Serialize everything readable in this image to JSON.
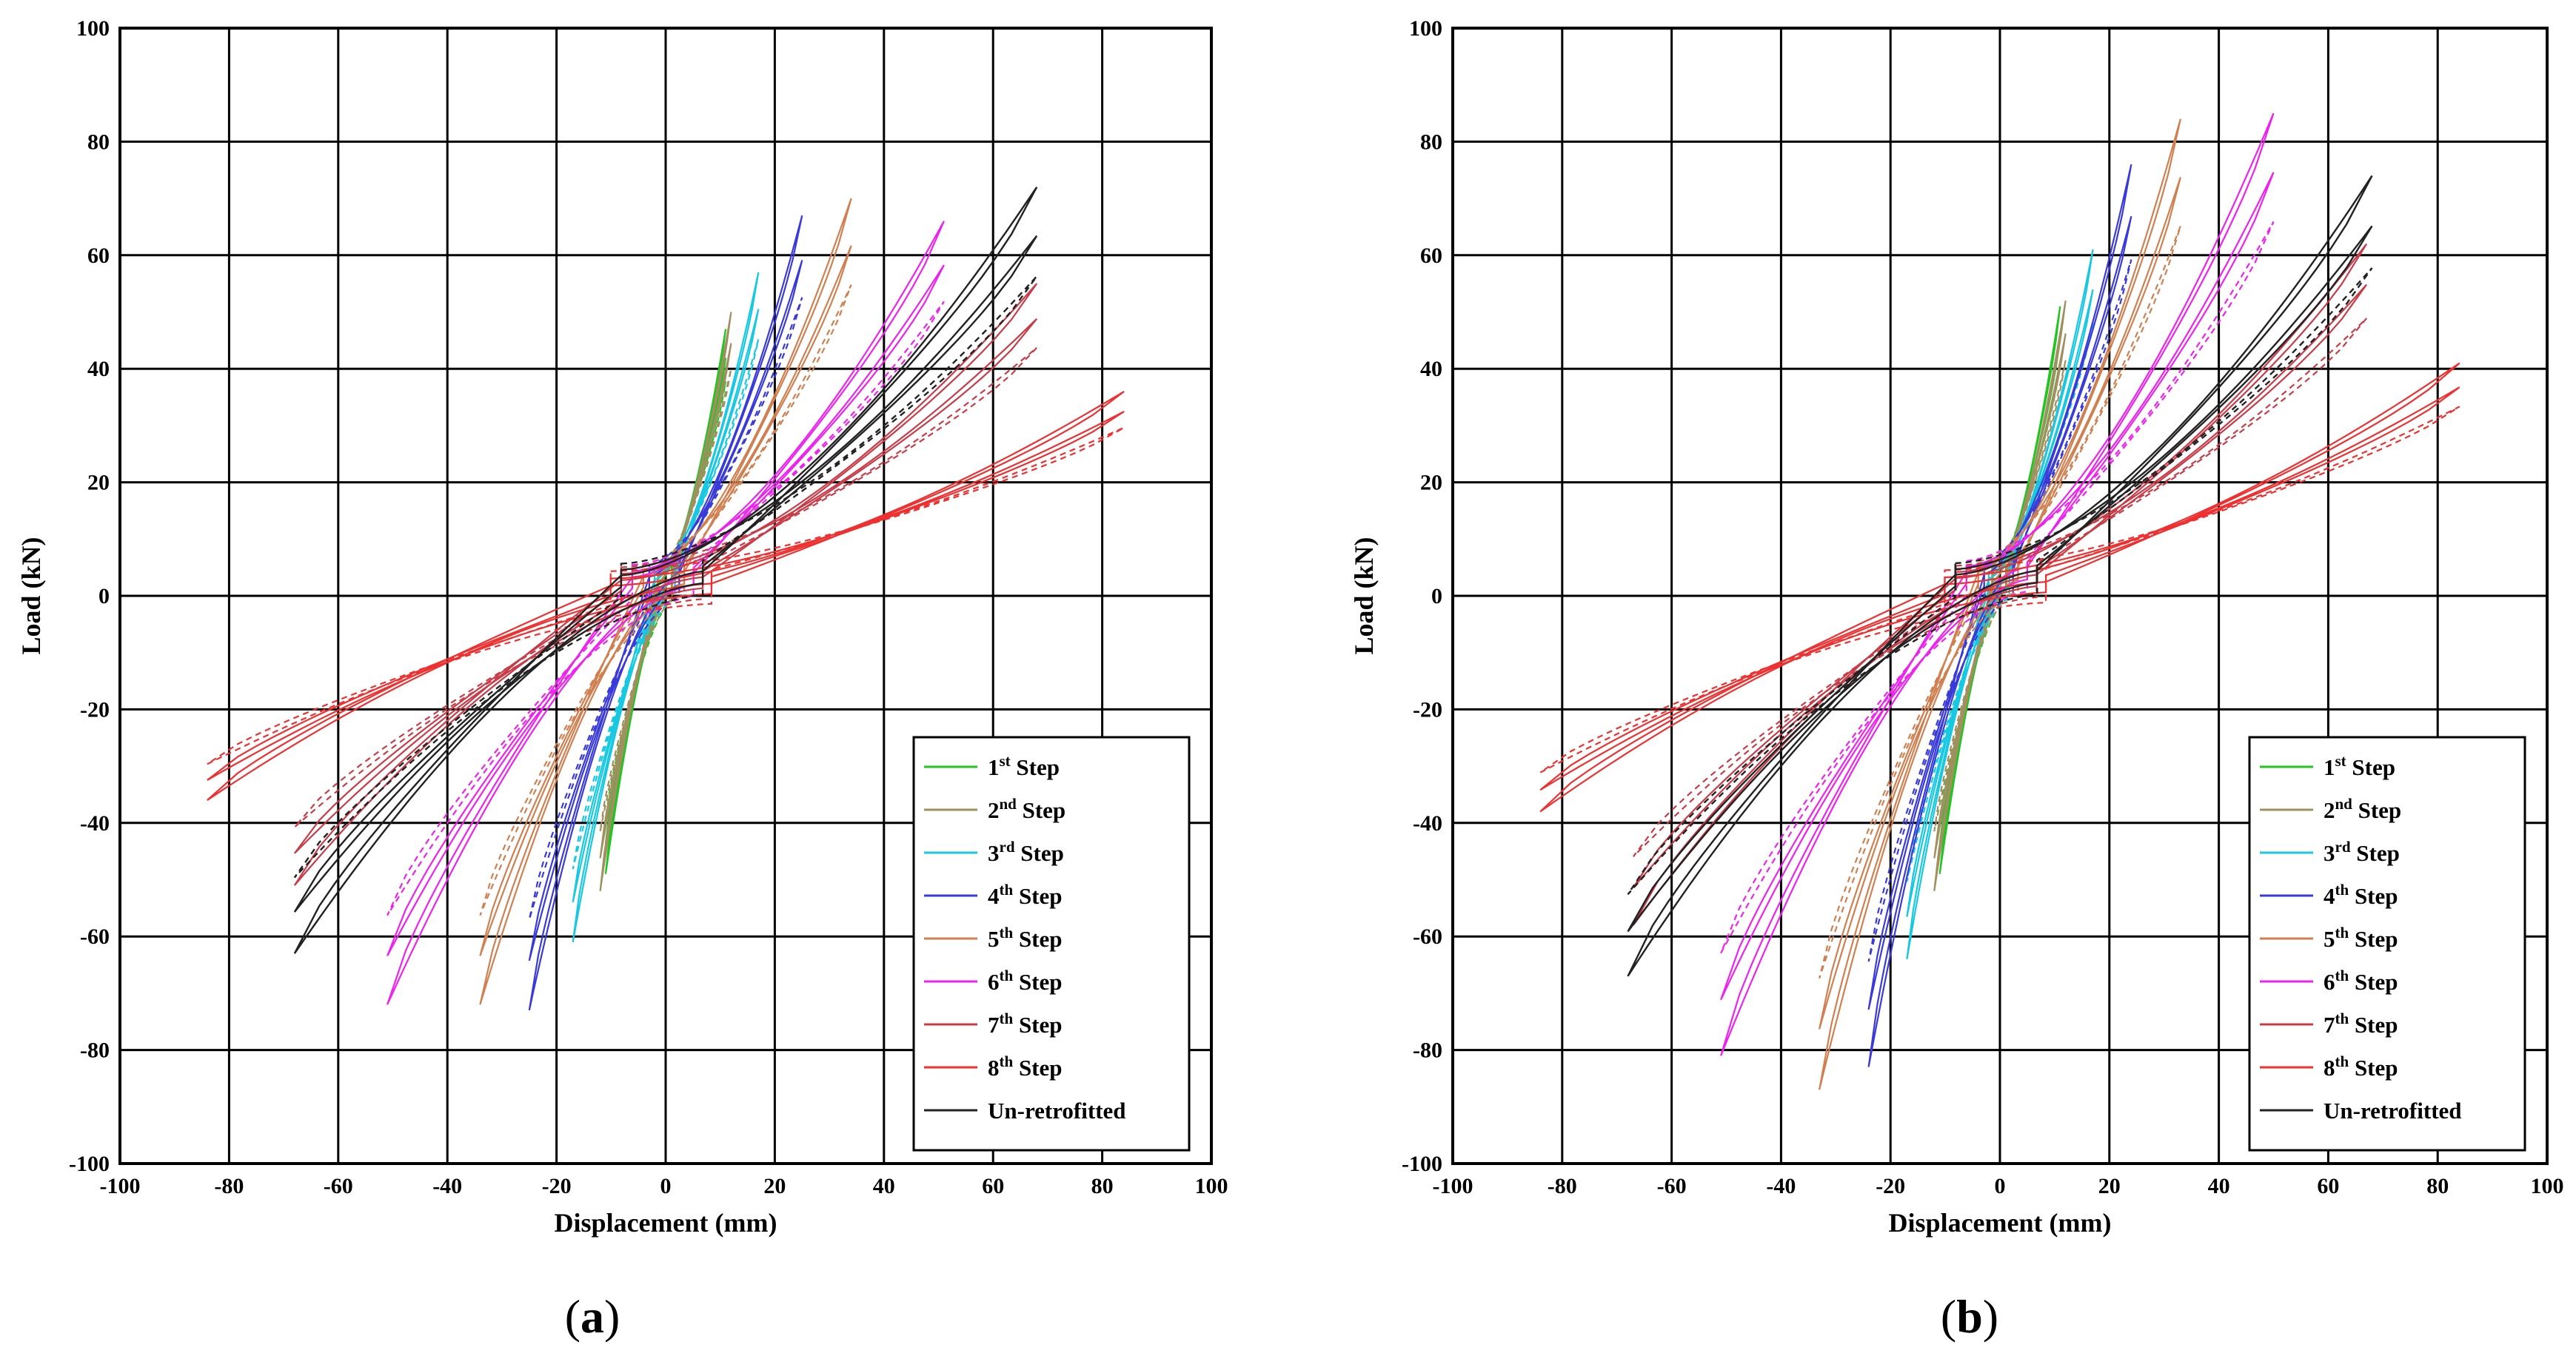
{
  "chart_data": [
    {
      "panel_label": "a",
      "type": "line",
      "subtype": "hysteresis",
      "title": "",
      "xlabel": "Displacement (mm)",
      "ylabel": "Load (kN)",
      "xlim": [
        -100,
        100
      ],
      "ylim": [
        -100,
        100
      ],
      "xticks": [
        -100,
        -80,
        -60,
        -40,
        -20,
        0,
        20,
        40,
        60,
        80,
        100
      ],
      "yticks": [
        -100,
        -80,
        -60,
        -40,
        -20,
        0,
        20,
        40,
        60,
        80,
        100
      ],
      "grid": true,
      "legend_position": "bottom-right",
      "series": [
        {
          "name": "1st Step",
          "ord": "1",
          "suffix": "st",
          "label": "Step",
          "color": "#22c422",
          "dmax": 11,
          "dmin": -11,
          "pmax": 47,
          "pmin": -49
        },
        {
          "name": "2nd Step",
          "ord": "2",
          "suffix": "nd",
          "label": "Step",
          "color": "#a09060",
          "dmax": 12,
          "dmin": -12,
          "pmax": 50,
          "pmin": -52
        },
        {
          "name": "3rd Step",
          "ord": "3",
          "suffix": "rd",
          "label": "Step",
          "color": "#18c8e0",
          "dmax": 17,
          "dmin": -17,
          "pmax": 57,
          "pmin": -61
        },
        {
          "name": "4th Step",
          "ord": "4",
          "suffix": "th",
          "label": "Step",
          "color": "#3a3ad8",
          "dmax": 25,
          "dmin": -25,
          "pmax": 67,
          "pmin": -73
        },
        {
          "name": "5th Step",
          "ord": "5",
          "suffix": "th",
          "label": "Step",
          "color": "#d08050",
          "dmax": 34,
          "dmin": -34,
          "pmax": 70,
          "pmin": -72
        },
        {
          "name": "6th Step",
          "ord": "6",
          "suffix": "th",
          "label": "Step",
          "color": "#ee22ee",
          "dmax": 51,
          "dmin": -51,
          "pmax": 66,
          "pmin": -72
        },
        {
          "name": "7th Step",
          "ord": "7",
          "suffix": "th",
          "label": "Step",
          "color": "#c83c48",
          "dmax": 68,
          "dmin": -68,
          "pmax": 55,
          "pmin": -51
        },
        {
          "name": "8th Step",
          "ord": "8",
          "suffix": "th",
          "label": "Step",
          "color": "#ee3030",
          "dmax": 84,
          "dmin": -84,
          "pmax": 36,
          "pmin": -36
        },
        {
          "name": "Un-retrofitted",
          "ord": "",
          "suffix": "",
          "label": "Un-retrofitted",
          "color": "#222222",
          "dmax": 68,
          "dmin": -68,
          "pmax": 72,
          "pmin": -63
        }
      ]
    },
    {
      "panel_label": "b",
      "type": "line",
      "subtype": "hysteresis",
      "title": "",
      "xlabel": "Displacement (mm)",
      "ylabel": "Load (kN)",
      "xlim": [
        -100,
        100
      ],
      "ylim": [
        -100,
        100
      ],
      "xticks": [
        -100,
        -80,
        -60,
        -40,
        -20,
        0,
        20,
        40,
        60,
        80,
        100
      ],
      "yticks": [
        -100,
        -80,
        -60,
        -40,
        -20,
        0,
        20,
        40,
        60,
        80,
        100
      ],
      "grid": true,
      "legend_position": "bottom-right",
      "series": [
        {
          "name": "1st Step",
          "ord": "1",
          "suffix": "st",
          "label": "Step",
          "color": "#22c422",
          "dmax": 11,
          "dmin": -11,
          "pmax": 51,
          "pmin": -49
        },
        {
          "name": "2nd Step",
          "ord": "2",
          "suffix": "nd",
          "label": "Step",
          "color": "#a09060",
          "dmax": 12,
          "dmin": -12,
          "pmax": 52,
          "pmin": -52
        },
        {
          "name": "3rd Step",
          "ord": "3",
          "suffix": "rd",
          "label": "Step",
          "color": "#18c8e0",
          "dmax": 17,
          "dmin": -17,
          "pmax": 61,
          "pmin": -64
        },
        {
          "name": "4th Step",
          "ord": "4",
          "suffix": "th",
          "label": "Step",
          "color": "#3a3ad8",
          "dmax": 24,
          "dmin": -24,
          "pmax": 76,
          "pmin": -83
        },
        {
          "name": "5th Step",
          "ord": "5",
          "suffix": "th",
          "label": "Step",
          "color": "#d08050",
          "dmax": 33,
          "dmin": -33,
          "pmax": 84,
          "pmin": -87
        },
        {
          "name": "6th Step",
          "ord": "6",
          "suffix": "th",
          "label": "Step",
          "color": "#ee22ee",
          "dmax": 50,
          "dmin": -51,
          "pmax": 85,
          "pmin": -81
        },
        {
          "name": "7th Step",
          "ord": "7",
          "suffix": "th",
          "label": "Step",
          "color": "#c83c48",
          "dmax": 67,
          "dmin": -67,
          "pmax": 62,
          "pmin": -58
        },
        {
          "name": "8th Step",
          "ord": "8",
          "suffix": "th",
          "label": "Step",
          "color": "#ee3030",
          "dmax": 84,
          "dmin": -84,
          "pmax": 41,
          "pmin": -38
        },
        {
          "name": "Un-retrofitted",
          "ord": "",
          "suffix": "",
          "label": "Un-retrofitted",
          "color": "#222222",
          "dmax": 68,
          "dmin": -68,
          "pmax": 74,
          "pmin": -67
        }
      ]
    }
  ]
}
